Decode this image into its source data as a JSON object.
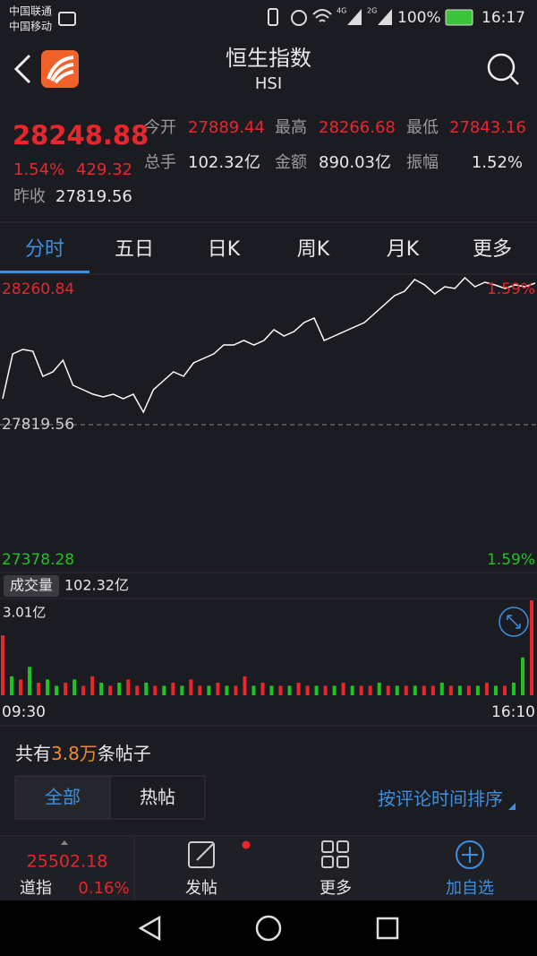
{
  "status_bar": {
    "carrier_1": "中国联通",
    "carrier_2": "中国移动",
    "network_1": "4G",
    "network_2": "2G",
    "battery": "100%",
    "time": "16:17"
  },
  "header": {
    "title": "恒生指数",
    "subtitle": "HSI"
  },
  "quote": {
    "price": "28248.88",
    "change_pct": "1.54%",
    "change": "429.32",
    "prev_close_label": "昨收",
    "prev_close": "27819.56",
    "stats": [
      {
        "label": "今开",
        "value": "27889.44"
      },
      {
        "label": "最高",
        "value": "28266.68"
      },
      {
        "label": "最低",
        "value": "27843.16"
      },
      {
        "label": "总手",
        "value": "102.32亿"
      },
      {
        "label": "金额",
        "value": "890.03亿"
      },
      {
        "label": "振幅",
        "value": "1.52%"
      }
    ]
  },
  "tabs": [
    "分时",
    "五日",
    "日K",
    "周K",
    "月K",
    "更多"
  ],
  "chart_data": [
    {
      "type": "line",
      "color": "#ffffff",
      "values": [
        27898.6,
        28034.8,
        28048.4,
        28043.0,
        27966.7,
        27980.3,
        28015.7,
        27939.4,
        27925.8,
        27912.2,
        27904.0,
        27912.2,
        27898.6,
        27912.2,
        27857.7,
        27925.8,
        27953.1,
        27980.3,
        27966.7,
        28007.6,
        28021.2,
        28034.8,
        28062.0,
        28062.0,
        28075.7,
        28062.0,
        28075.7,
        28108.3,
        28089.3,
        28102.9,
        28130.1,
        28143.8,
        28075.7,
        28089.3,
        28102.9,
        28116.5,
        28130.1,
        28157.4,
        28184.6,
        28211.9,
        28225.5,
        28260.8,
        28244.5,
        28217.3,
        28239.1,
        28233.6,
        28266.3,
        28239.1,
        28252.7,
        28244.5,
        28233.6,
        28244.5,
        28239.1,
        28250.0
      ],
      "ylim": [
        27378.28,
        28260.84
      ],
      "yticks": [
        27378.28,
        27819.56,
        28260.84
      ],
      "ytick_colors": [
        "#1fc41f",
        "#cccccc",
        "#e8262b"
      ],
      "reference_line": 27819.56,
      "upper_pct": "1.59%",
      "lower_pct": "1.59%"
    },
    {
      "type": "bar",
      "title": "成交量",
      "total": "102.32亿",
      "values": [
        1.9,
        0.6,
        0.5,
        0.9,
        0.4,
        0.5,
        0.3,
        0.4,
        0.5,
        0.3,
        0.6,
        0.4,
        0.3,
        0.4,
        0.5,
        0.3,
        0.4,
        0.3,
        0.3,
        0.4,
        0.3,
        0.5,
        0.3,
        0.3,
        0.4,
        0.3,
        0.3,
        0.6,
        0.3,
        0.4,
        0.3,
        0.3,
        0.3,
        0.4,
        0.3,
        0.3,
        0.3,
        0.3,
        0.4,
        0.3,
        0.3,
        0.3,
        0.4,
        0.3,
        0.3,
        0.3,
        0.3,
        0.3,
        0.3,
        0.4,
        0.3,
        0.3,
        0.3,
        0.3,
        0.4,
        0.3,
        0.3,
        0.4,
        1.2,
        3.01
      ],
      "colors": [
        "#e8262b",
        "#1fc41f",
        "#e8262b",
        "#1fc41f",
        "#e8262b",
        "#1fc41f",
        "#1fc41f",
        "#e8262b",
        "#1fc41f",
        "#e8262b",
        "#e8262b",
        "#1fc41f",
        "#e8262b",
        "#1fc41f",
        "#e8262b",
        "#e8262b",
        "#1fc41f",
        "#e8262b",
        "#1fc41f",
        "#e8262b",
        "#1fc41f",
        "#e8262b",
        "#e8262b",
        "#1fc41f",
        "#e8262b",
        "#1fc41f",
        "#e8262b",
        "#e8262b",
        "#1fc41f",
        "#e8262b",
        "#1fc41f",
        "#e8262b",
        "#1fc41f",
        "#e8262b",
        "#e8262b",
        "#1fc41f",
        "#e8262b",
        "#1fc41f",
        "#e8262b",
        "#1fc41f",
        "#e8262b",
        "#e8262b",
        "#1fc41f",
        "#e8262b",
        "#1fc41f",
        "#e8262b",
        "#1fc41f",
        "#e8262b",
        "#e8262b",
        "#1fc41f",
        "#e8262b",
        "#1fc41f",
        "#e8262b",
        "#1fc41f",
        "#e8262b",
        "#1fc41f",
        "#e8262b",
        "#1fc41f",
        "#1fc41f",
        "#e8262b"
      ],
      "ylim": [
        0,
        3.01
      ],
      "yticks": [
        {
          "value": 3.01,
          "label": "3.01亿"
        }
      ]
    }
  ],
  "time_axis": [
    "09:30",
    "16:10"
  ],
  "posts": {
    "prefix": "共有",
    "count": "3.8万",
    "suffix": "条帖子",
    "tabs": [
      "全部",
      "热帖"
    ],
    "sort": "按评论时间排序"
  },
  "bottom_bar": {
    "index_value": "25502.18",
    "index_name": "道指",
    "index_change": "0.16%",
    "post": "发帖",
    "more": "更多",
    "watch": "加自选"
  }
}
